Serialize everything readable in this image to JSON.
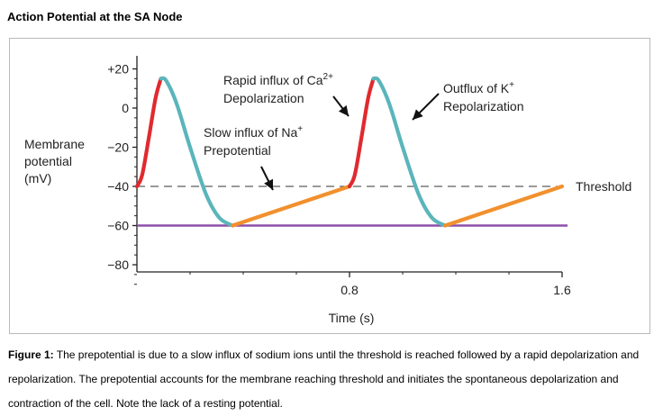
{
  "page_title": "Action Potential at the SA Node",
  "caption": {
    "label": "Figure 1:",
    "text": "The prepotential is due to a slow influx of sodium ions until the threshold is reached followed by a rapid depolarization and repolarization. The prepotential accounts for the membrane reaching threshold and initiates the spontaneous depolarization and contraction of the cell. Note the lack of a resting potential."
  },
  "chart_data": {
    "type": "line",
    "title": "",
    "ylabel_lines": [
      "Membrane",
      "potential",
      "(mV)"
    ],
    "xlabel": "Time (s)",
    "ylim": [
      -85,
      25
    ],
    "xlim": [
      0,
      1.6
    ],
    "y_ticks": [
      20,
      0,
      -20,
      -40,
      -60,
      -80
    ],
    "y_tick_labels": [
      "+20",
      "0",
      "−20",
      "−40",
      "−60",
      "−80"
    ],
    "x_ticks": [
      0.8,
      1.6
    ],
    "x_tick_labels": [
      "0.8",
      "1.6"
    ],
    "threshold": {
      "value": -40,
      "label": "Threshold"
    },
    "resting_reference": {
      "value": -60,
      "color": "#8e4fa8"
    },
    "colors": {
      "depolarization": "#e02a2e",
      "repolarization": "#5bb5bb",
      "prepotential": "#f2902e",
      "threshold_line": "#333333"
    },
    "series": [
      {
        "phase": "depolarization",
        "points": [
          [
            0.0,
            -40
          ],
          [
            0.02,
            -34
          ],
          [
            0.045,
            -15
          ],
          [
            0.07,
            5
          ],
          [
            0.09,
            15
          ]
        ]
      },
      {
        "phase": "repolarization",
        "points": [
          [
            0.09,
            15
          ],
          [
            0.11,
            14
          ],
          [
            0.15,
            2
          ],
          [
            0.2,
            -20
          ],
          [
            0.26,
            -44
          ],
          [
            0.31,
            -56
          ],
          [
            0.36,
            -60
          ]
        ]
      },
      {
        "phase": "prepotential",
        "points": [
          [
            0.36,
            -60
          ],
          [
            0.8,
            -40
          ]
        ]
      },
      {
        "phase": "depolarization",
        "points": [
          [
            0.8,
            -40
          ],
          [
            0.82,
            -34
          ],
          [
            0.845,
            -15
          ],
          [
            0.87,
            5
          ],
          [
            0.89,
            15
          ]
        ]
      },
      {
        "phase": "repolarization",
        "points": [
          [
            0.89,
            15
          ],
          [
            0.91,
            14
          ],
          [
            0.95,
            2
          ],
          [
            1.0,
            -20
          ],
          [
            1.06,
            -44
          ],
          [
            1.11,
            -56
          ],
          [
            1.16,
            -60
          ]
        ]
      },
      {
        "phase": "prepotential",
        "points": [
          [
            1.16,
            -60
          ],
          [
            1.6,
            -40
          ]
        ]
      }
    ],
    "annotations": [
      {
        "id": "ca",
        "lines": [
          "Rapid influx of Ca",
          "Depolarization"
        ],
        "superscript": "2+"
      },
      {
        "id": "k",
        "lines": [
          "Outflux of K",
          "Repolarization"
        ],
        "superscript": "+"
      },
      {
        "id": "na",
        "lines": [
          "Slow influx of Na",
          "Prepotential"
        ],
        "superscript": "+"
      }
    ]
  }
}
